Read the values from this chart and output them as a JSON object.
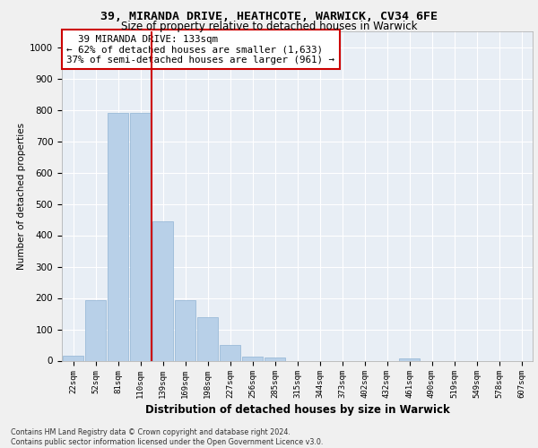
{
  "title_line1": "39, MIRANDA DRIVE, HEATHCOTE, WARWICK, CV34 6FE",
  "title_line2": "Size of property relative to detached houses in Warwick",
  "xlabel": "Distribution of detached houses by size in Warwick",
  "ylabel": "Number of detached properties",
  "footnote": "Contains HM Land Registry data © Crown copyright and database right 2024.\nContains public sector information licensed under the Open Government Licence v3.0.",
  "bar_color": "#b8d0e8",
  "bar_edge_color": "#9bbbd8",
  "vline_x": 3.5,
  "vline_color": "#cc0000",
  "annotation_text": "  39 MIRANDA DRIVE: 133sqm\n← 62% of detached houses are smaller (1,633)\n37% of semi-detached houses are larger (961) →",
  "annotation_box_color": "#ffffff",
  "annotation_border_color": "#cc0000",
  "categories": [
    "22sqm",
    "52sqm",
    "81sqm",
    "110sqm",
    "139sqm",
    "169sqm",
    "198sqm",
    "227sqm",
    "256sqm",
    "285sqm",
    "315sqm",
    "344sqm",
    "373sqm",
    "402sqm",
    "432sqm",
    "461sqm",
    "490sqm",
    "519sqm",
    "549sqm",
    "578sqm",
    "607sqm"
  ],
  "values": [
    15,
    193,
    790,
    790,
    443,
    193,
    140,
    49,
    13,
    9,
    0,
    0,
    0,
    0,
    0,
    8,
    0,
    0,
    0,
    0,
    0
  ],
  "ylim": [
    0,
    1050
  ],
  "yticks": [
    0,
    100,
    200,
    300,
    400,
    500,
    600,
    700,
    800,
    900,
    1000
  ],
  "background_color": "#e8eef5",
  "grid_color": "#ffffff",
  "fig_width": 6.0,
  "fig_height": 5.0,
  "fig_dpi": 100
}
